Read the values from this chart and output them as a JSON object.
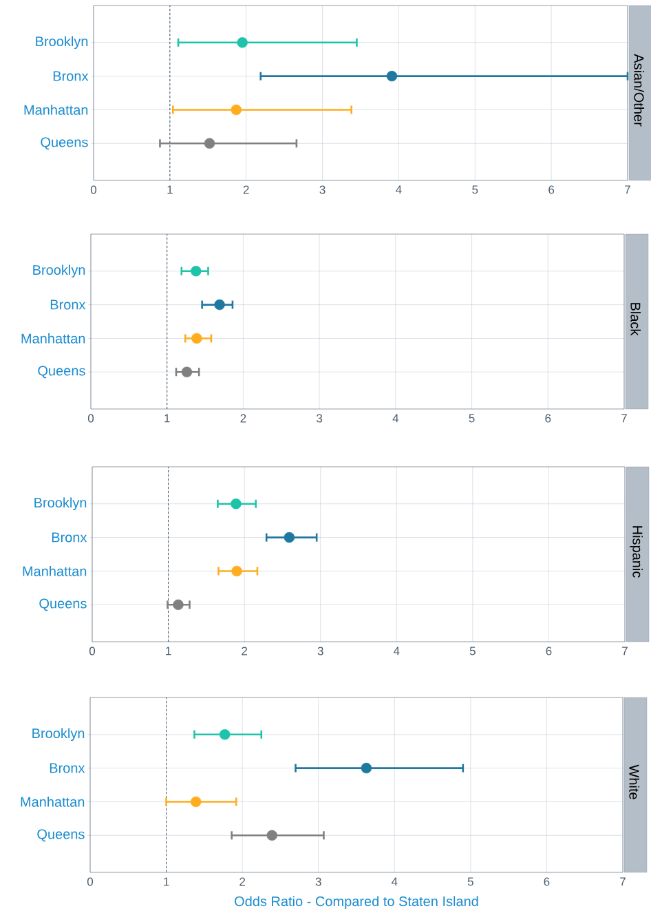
{
  "chart_data": [
    {
      "type": "scatter",
      "orientation": "horizontal",
      "title": "Asian/Other",
      "categories": [
        "Brooklyn",
        "Bronx",
        "Manhattan",
        "Queens"
      ],
      "values": [
        1.95,
        3.91,
        1.87,
        1.52
      ],
      "errors": [
        [
          1.11,
          3.45
        ],
        [
          2.19,
          7.0
        ],
        [
          1.04,
          3.38
        ],
        [
          0.87,
          2.66
        ]
      ],
      "colors": [
        "#1fc3aa",
        "#1f78a0",
        "#ffad1f",
        "#808080"
      ],
      "xlim": [
        0,
        7
      ],
      "xticks": [
        0,
        1,
        2,
        3,
        4,
        5,
        6,
        7
      ],
      "grid": true,
      "marker": "circle",
      "ref_lines": [
        {
          "axis": "x",
          "value": 1,
          "line_style": "dashed",
          "color": "#3d5366"
        }
      ]
    },
    {
      "type": "scatter",
      "orientation": "horizontal",
      "title": "Black",
      "categories": [
        "Brooklyn",
        "Bronx",
        "Manhattan",
        "Queens"
      ],
      "values": [
        1.38,
        1.69,
        1.39,
        1.26
      ],
      "errors": [
        [
          1.19,
          1.54
        ],
        [
          1.46,
          1.86
        ],
        [
          1.24,
          1.58
        ],
        [
          1.12,
          1.42
        ]
      ],
      "colors": [
        "#1fc3aa",
        "#1f78a0",
        "#ffad1f",
        "#808080"
      ],
      "xlim": [
        0,
        7
      ],
      "xticks": [
        0,
        1,
        2,
        3,
        4,
        5,
        6,
        7
      ],
      "grid": true,
      "marker": "circle",
      "ref_lines": [
        {
          "axis": "x",
          "value": 1,
          "line_style": "dashed",
          "color": "#3d5366"
        }
      ]
    },
    {
      "type": "scatter",
      "orientation": "horizontal",
      "title": "Hispanic",
      "categories": [
        "Brooklyn",
        "Bronx",
        "Manhattan",
        "Queens"
      ],
      "values": [
        1.89,
        2.59,
        1.9,
        1.13
      ],
      "errors": [
        [
          1.65,
          2.15
        ],
        [
          2.29,
          2.95
        ],
        [
          1.66,
          2.17
        ],
        [
          0.99,
          1.28
        ]
      ],
      "colors": [
        "#1fc3aa",
        "#1f78a0",
        "#ffad1f",
        "#808080"
      ],
      "xlim": [
        0,
        7
      ],
      "xticks": [
        0,
        1,
        2,
        3,
        4,
        5,
        6,
        7
      ],
      "grid": true,
      "marker": "circle",
      "ref_lines": [
        {
          "axis": "x",
          "value": 1,
          "line_style": "dashed",
          "color": "#3d5366"
        }
      ]
    },
    {
      "type": "scatter",
      "orientation": "horizontal",
      "title": "White",
      "xlabel": "Odds Ratio - Compared to Staten Island",
      "categories": [
        "Brooklyn",
        "Bronx",
        "Manhattan",
        "Queens"
      ],
      "values": [
        1.77,
        3.63,
        1.39,
        2.39
      ],
      "errors": [
        [
          1.37,
          2.25
        ],
        [
          2.7,
          4.9
        ],
        [
          1.0,
          1.92
        ],
        [
          1.86,
          3.07
        ]
      ],
      "colors": [
        "#1fc3aa",
        "#1f78a0",
        "#ffad1f",
        "#808080"
      ],
      "xlim": [
        0,
        7
      ],
      "xticks": [
        0,
        1,
        2,
        3,
        4,
        5,
        6,
        7
      ],
      "grid": true,
      "marker": "circle",
      "ref_lines": [
        {
          "axis": "x",
          "value": 1,
          "line_style": "dashed",
          "color": "#3d5366"
        }
      ]
    }
  ]
}
